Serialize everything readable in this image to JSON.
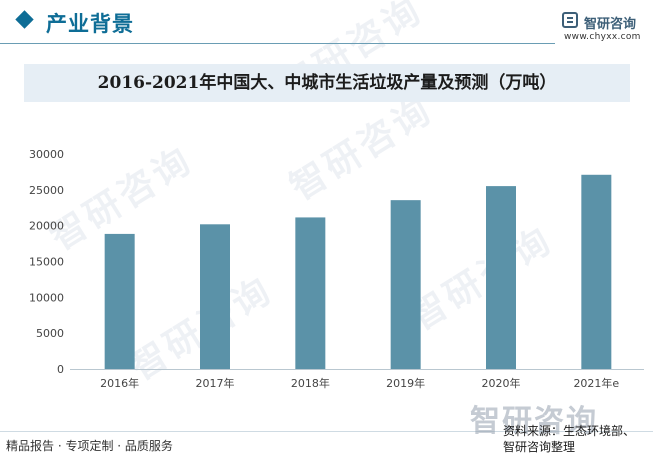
{
  "header": {
    "section_title": "产业背景",
    "logo_text": "智研咨询",
    "logo_url": "www.chyxx.com"
  },
  "watermark_text": "智研咨询",
  "chart_data": {
    "type": "bar",
    "title": "2016-2021年中国大、中城市生活垃圾产量及预测（万吨）",
    "categories": [
      "2016年",
      "2017年",
      "2018年",
      "2019年",
      "2020年",
      "2021年e"
    ],
    "series": [
      {
        "values": [
          18850,
          20190,
          21150,
          23560,
          25520,
          27100
        ]
      }
    ],
    "ylim": [
      0,
      30000
    ],
    "yticks": [
      0,
      5000,
      10000,
      15000,
      20000,
      25000,
      30000
    ],
    "xlabel": "",
    "ylabel": "",
    "grid": false,
    "bar_color": "#5b92a8"
  },
  "footer": {
    "tagline": "精品报告 · 专项定制 · 品质服务",
    "source_line1": "资料来源：生态环境部、",
    "source_line2": "智研咨询整理"
  }
}
